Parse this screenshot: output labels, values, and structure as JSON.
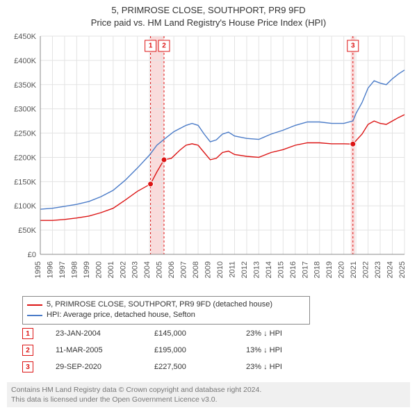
{
  "title_line1": "5, PRIMROSE CLOSE, SOUTHPORT, PR9 9FD",
  "title_line2": "Price paid vs. HM Land Registry's House Price Index (HPI)",
  "chart": {
    "type": "line",
    "background_color": "#ffffff",
    "grid_color": "#e3e3e3",
    "axis_color": "#888888",
    "x_years": [
      1995,
      1996,
      1997,
      1998,
      1999,
      2000,
      2001,
      2002,
      2003,
      2004,
      2005,
      2006,
      2007,
      2008,
      2009,
      2010,
      2011,
      2012,
      2013,
      2014,
      2015,
      2016,
      2017,
      2018,
      2019,
      2020,
      2021,
      2022,
      2023,
      2024,
      2025
    ],
    "xlim": [
      1995,
      2025
    ],
    "ylim": [
      0,
      450
    ],
    "ytick_step": 50,
    "y_prefix": "£",
    "y_suffix": "K",
    "event_band_color": "#f9dcdc",
    "event_line_color": "#dc1414",
    "series": [
      {
        "name": "price_paid",
        "label": "5, PRIMROSE CLOSE, SOUTHPORT, PR9 9FD (detached house)",
        "color": "#dc1414",
        "line_width": 1.4,
        "points": [
          [
            1995.0,
            70
          ],
          [
            1996.0,
            70
          ],
          [
            1997.0,
            72
          ],
          [
            1998.0,
            75
          ],
          [
            1999.0,
            79
          ],
          [
            2000.0,
            86
          ],
          [
            2001.0,
            95
          ],
          [
            2002.0,
            112
          ],
          [
            2003.0,
            130
          ],
          [
            2004.08,
            145
          ],
          [
            2004.6,
            170
          ],
          [
            2005.19,
            195
          ],
          [
            2005.8,
            198
          ],
          [
            2006.5,
            215
          ],
          [
            2007.0,
            225
          ],
          [
            2007.5,
            228
          ],
          [
            2008.0,
            225
          ],
          [
            2008.5,
            210
          ],
          [
            2009.0,
            195
          ],
          [
            2009.5,
            198
          ],
          [
            2010.0,
            210
          ],
          [
            2010.5,
            213
          ],
          [
            2011.0,
            206
          ],
          [
            2012.0,
            202
          ],
          [
            2013.0,
            200
          ],
          [
            2013.5,
            205
          ],
          [
            2014.0,
            210
          ],
          [
            2015.0,
            216
          ],
          [
            2016.0,
            225
          ],
          [
            2017.0,
            230
          ],
          [
            2018.0,
            230
          ],
          [
            2019.0,
            228
          ],
          [
            2020.0,
            228
          ],
          [
            2020.75,
            227.5
          ],
          [
            2021.5,
            248
          ],
          [
            2022.0,
            268
          ],
          [
            2022.5,
            275
          ],
          [
            2023.0,
            270
          ],
          [
            2023.5,
            268
          ],
          [
            2024.0,
            275
          ],
          [
            2024.5,
            282
          ],
          [
            2025.0,
            288
          ]
        ]
      },
      {
        "name": "hpi",
        "label": "HPI: Average price, detached house, Sefton",
        "color": "#4a7bc8",
        "line_width": 1.4,
        "points": [
          [
            1995.0,
            93
          ],
          [
            1996.0,
            95
          ],
          [
            1997.0,
            99
          ],
          [
            1998.0,
            103
          ],
          [
            1999.0,
            109
          ],
          [
            2000.0,
            119
          ],
          [
            2001.0,
            132
          ],
          [
            2002.0,
            153
          ],
          [
            2003.0,
            178
          ],
          [
            2004.0,
            205
          ],
          [
            2004.6,
            225
          ],
          [
            2005.19,
            237
          ],
          [
            2006.0,
            253
          ],
          [
            2007.0,
            266
          ],
          [
            2007.5,
            270
          ],
          [
            2008.0,
            266
          ],
          [
            2008.5,
            248
          ],
          [
            2009.0,
            232
          ],
          [
            2009.5,
            236
          ],
          [
            2010.0,
            248
          ],
          [
            2010.5,
            252
          ],
          [
            2011.0,
            244
          ],
          [
            2012.0,
            239
          ],
          [
            2013.0,
            237
          ],
          [
            2014.0,
            248
          ],
          [
            2015.0,
            256
          ],
          [
            2016.0,
            266
          ],
          [
            2017.0,
            273
          ],
          [
            2018.0,
            273
          ],
          [
            2019.0,
            270
          ],
          [
            2020.0,
            270
          ],
          [
            2020.75,
            275
          ],
          [
            2021.0,
            290
          ],
          [
            2021.5,
            313
          ],
          [
            2022.0,
            343
          ],
          [
            2022.5,
            358
          ],
          [
            2023.0,
            353
          ],
          [
            2023.5,
            350
          ],
          [
            2024.0,
            362
          ],
          [
            2024.5,
            372
          ],
          [
            2025.0,
            380
          ]
        ]
      }
    ],
    "events": [
      {
        "num": "1",
        "year": 2004.08,
        "date": "23-JAN-2004",
        "price": "£145,000",
        "diff": "23% ↓ HPI",
        "marker_y": 145
      },
      {
        "num": "2",
        "year": 2005.19,
        "date": "11-MAR-2005",
        "price": "£195,000",
        "diff": "13% ↓ HPI",
        "marker_y": 195
      },
      {
        "num": "3",
        "year": 2020.75,
        "date": "29-SEP-2020",
        "price": "£227,500",
        "diff": "23% ↓ HPI",
        "marker_y": 227.5
      }
    ],
    "marker": {
      "radius": 4,
      "fill": "#dc1414",
      "stroke": "#ffffff",
      "stroke_width": 1
    }
  },
  "footer_line1": "Contains HM Land Registry data © Crown copyright and database right 2024.",
  "footer_line2": "This data is licensed under the Open Government Licence v3.0."
}
